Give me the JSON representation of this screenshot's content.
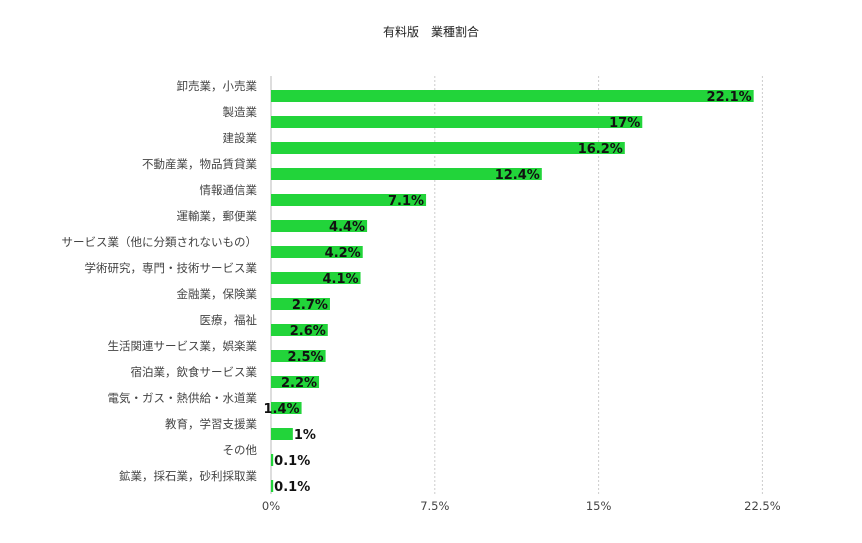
{
  "chart_data": {
    "type": "bar",
    "orientation": "horizontal",
    "title": "有料版　業種割合",
    "categories": [
      "卸売業，小売業",
      "製造業",
      "建設業",
      "不動産業，物品賃貸業",
      "情報通信業",
      "運輸業，郵便業",
      "サービス業（他に分類されないもの）",
      "学術研究，専門・技術サービス業",
      "金融業，保険業",
      "医療，福祉",
      "生活関連サービス業，娯楽業",
      "宿泊業，飲食サービス業",
      "電気・ガス・熱供給・水道業",
      "教育，学習支援業",
      "その他",
      "鉱業，採石業，砂利採取業"
    ],
    "values": [
      22.1,
      17,
      16.2,
      12.4,
      7.1,
      4.4,
      4.2,
      4.1,
      2.7,
      2.6,
      2.5,
      2.2,
      1.4,
      1,
      0.1,
      0.1
    ],
    "value_labels": [
      "22.1%",
      "17%",
      "16.2%",
      "12.4%",
      "7.1%",
      "4.4%",
      "4.2%",
      "4.1%",
      "2.7%",
      "2.6%",
      "2.5%",
      "2.2%",
      "1.4%",
      "1%",
      "0.1%",
      "0.1%"
    ],
    "xlim": [
      0,
      25
    ],
    "xticks": [
      0,
      7.5,
      15,
      22.5
    ],
    "xtick_labels": [
      "0%",
      "7.5%",
      "15%",
      "22.5%"
    ],
    "grid": "vertical dashed",
    "bar_color": "#22d43a"
  }
}
